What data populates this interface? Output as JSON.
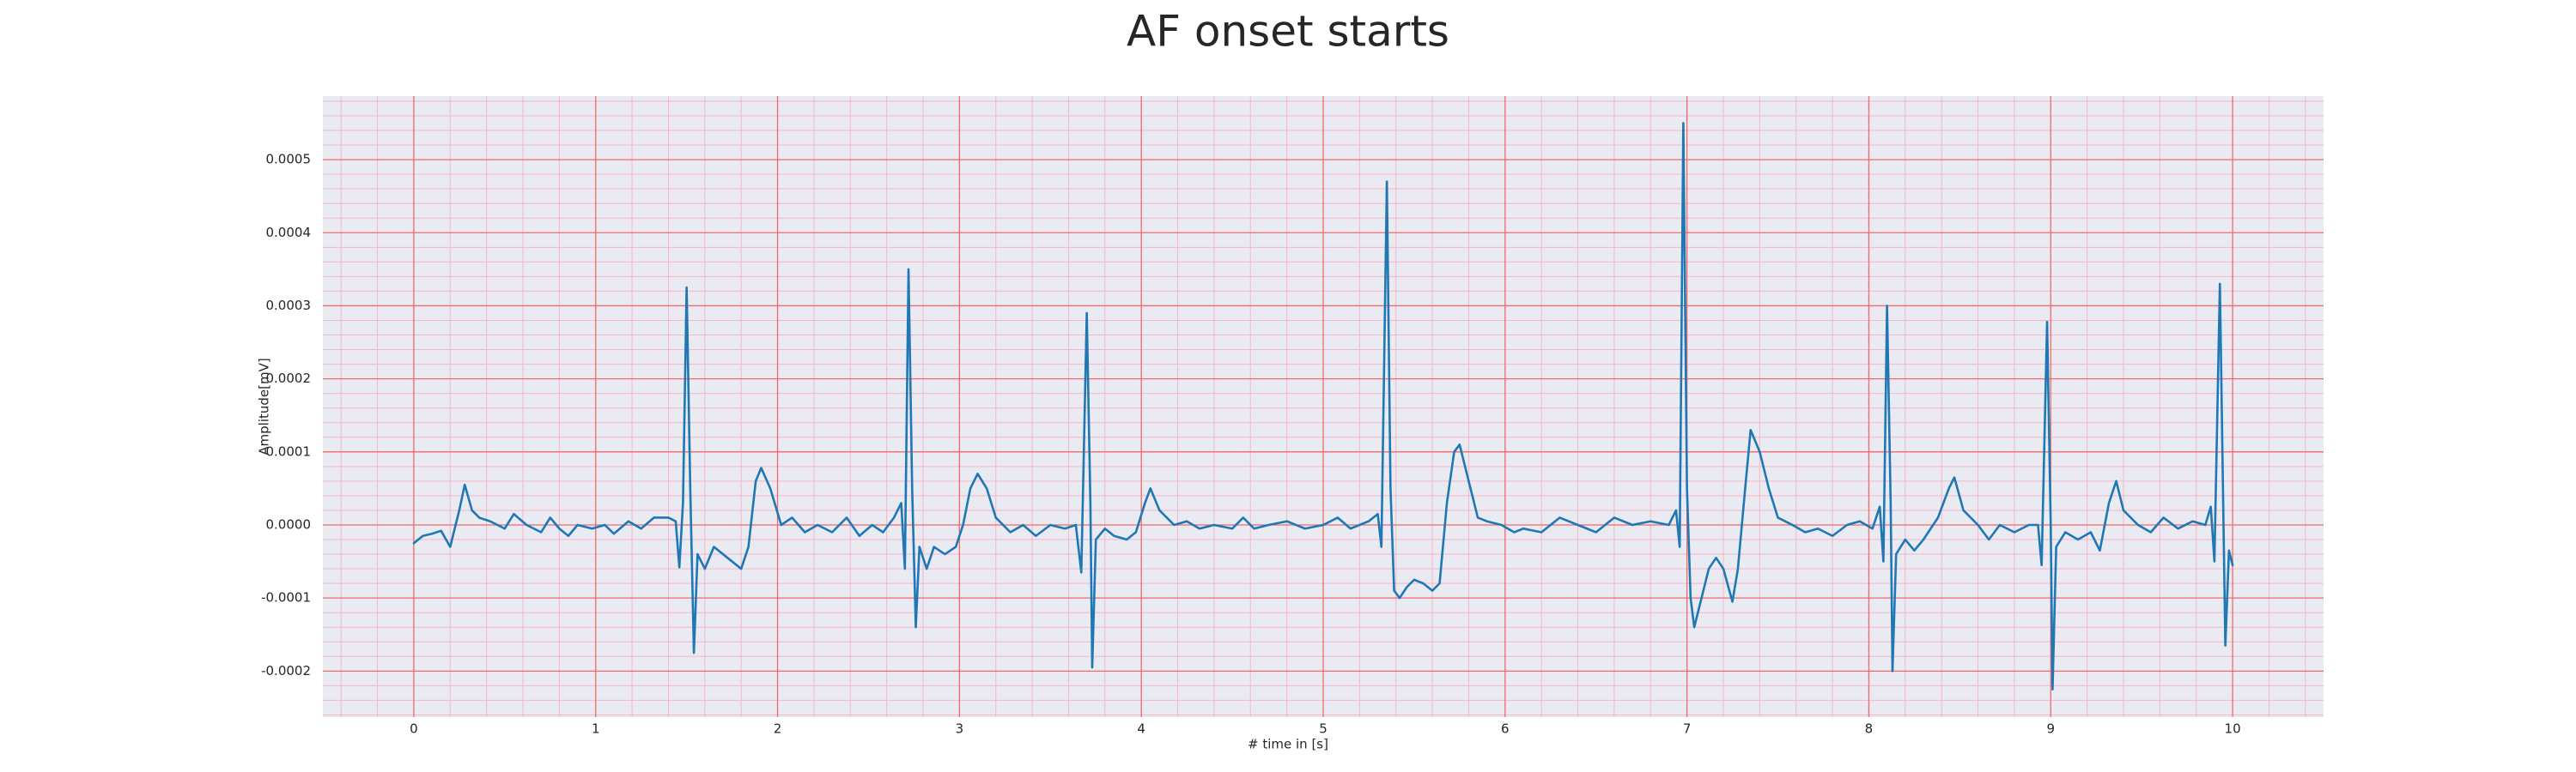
{
  "chart_data": {
    "type": "line",
    "title": "AF onset starts",
    "x_label": "# time in [s]",
    "y_label": "Amplitude[mV]",
    "xlim": [
      -0.5,
      10.5
    ],
    "ylim": [
      -0.000263,
      0.000587
    ],
    "xticks": [
      0,
      1,
      2,
      3,
      4,
      5,
      6,
      7,
      8,
      9,
      10
    ],
    "yticks": [
      {
        "value": -0.0002,
        "label": "-0.0002"
      },
      {
        "value": -0.0001,
        "label": "-0.0001"
      },
      {
        "value": 0,
        "label": "0.0000"
      },
      {
        "value": 0.0001,
        "label": "0.0001"
      },
      {
        "value": 0.0002,
        "label": "0.0002"
      },
      {
        "value": 0.0003,
        "label": "0.0003"
      },
      {
        "value": 0.0004,
        "label": "0.0004"
      },
      {
        "value": 0.0005,
        "label": "0.0005"
      }
    ],
    "grid": true,
    "minor_grid": true,
    "color": "#1f77b4",
    "x": [
      0,
      0.05,
      0.1,
      0.15,
      0.2,
      0.25,
      0.28,
      0.32,
      0.36,
      0.42,
      0.5,
      0.55,
      0.62,
      0.7,
      0.75,
      0.8,
      0.85,
      0.9,
      0.98,
      1.05,
      1.1,
      1.18,
      1.25,
      1.32,
      1.4,
      1.44,
      1.46,
      1.48,
      1.5,
      1.52,
      1.54,
      1.56,
      1.6,
      1.65,
      1.7,
      1.75,
      1.8,
      1.84,
      1.88,
      1.91,
      1.96,
      2.02,
      2.08,
      2.15,
      2.22,
      2.3,
      2.38,
      2.45,
      2.52,
      2.58,
      2.64,
      2.68,
      2.7,
      2.72,
      2.74,
      2.76,
      2.78,
      2.82,
      2.86,
      2.92,
      2.98,
      3.02,
      3.06,
      3.1,
      3.15,
      3.2,
      3.28,
      3.35,
      3.42,
      3.5,
      3.58,
      3.64,
      3.67,
      3.7,
      3.72,
      3.73,
      3.75,
      3.8,
      3.85,
      3.92,
      3.97,
      4.02,
      4.05,
      4.1,
      4.18,
      4.25,
      4.32,
      4.4,
      4.5,
      4.56,
      4.62,
      4.7,
      4.8,
      4.9,
      5,
      5.08,
      5.15,
      5.25,
      5.3,
      5.32,
      5.35,
      5.37,
      5.39,
      5.42,
      5.46,
      5.5,
      5.55,
      5.6,
      5.64,
      5.68,
      5.72,
      5.75,
      5.8,
      5.85,
      5.9,
      5.98,
      6.05,
      6.1,
      6.2,
      6.3,
      6.4,
      6.5,
      6.6,
      6.7,
      6.8,
      6.9,
      6.94,
      6.96,
      6.98,
      7,
      7.02,
      7.04,
      7.08,
      7.12,
      7.16,
      7.2,
      7.25,
      7.28,
      7.32,
      7.35,
      7.4,
      7.45,
      7.5,
      7.58,
      7.65,
      7.72,
      7.8,
      7.88,
      7.95,
      8.02,
      8.06,
      8.08,
      8.1,
      8.12,
      8.13,
      8.15,
      8.2,
      8.25,
      8.3,
      8.38,
      8.44,
      8.47,
      8.52,
      8.6,
      8.66,
      8.72,
      8.8,
      8.88,
      8.93,
      8.95,
      8.98,
      9,
      9.01,
      9.03,
      9.08,
      9.15,
      9.22,
      9.27,
      9.32,
      9.36,
      9.4,
      9.48,
      9.55,
      9.62,
      9.7,
      9.78,
      9.85,
      9.88,
      9.9,
      9.93,
      9.95,
      9.96,
      9.98,
      10
    ],
    "values": [
      -2.5e-05,
      -1.5e-05,
      -1.2e-05,
      -8e-06,
      -3e-05,
      2e-05,
      5.5e-05,
      2e-05,
      1e-05,
      5e-06,
      -5e-06,
      1.5e-05,
      0,
      -1e-05,
      1e-05,
      -5e-06,
      -1.5e-05,
      0,
      -5e-06,
      0,
      -1.2e-05,
      5e-06,
      -5e-06,
      1e-05,
      1e-05,
      5e-06,
      -5.8e-05,
      3e-05,
      0.000325,
      5e-05,
      -0.000175,
      -4e-05,
      -6e-05,
      -3e-05,
      -4e-05,
      -5e-05,
      -6e-05,
      -3e-05,
      6e-05,
      7.8e-05,
      5e-05,
      0,
      1e-05,
      -1e-05,
      0,
      -1e-05,
      1e-05,
      -1.5e-05,
      0,
      -1e-05,
      1e-05,
      3e-05,
      -6e-05,
      0.00035,
      5e-05,
      -0.00014,
      -3e-05,
      -6e-05,
      -3e-05,
      -4e-05,
      -3e-05,
      0,
      5e-05,
      7e-05,
      5e-05,
      1e-05,
      -1e-05,
      0,
      -1.5e-05,
      0,
      -5e-06,
      0,
      -6.5e-05,
      0.00029,
      3e-05,
      -0.000195,
      -2e-05,
      -5e-06,
      -1.5e-05,
      -2e-05,
      -1e-05,
      3e-05,
      5e-05,
      2e-05,
      0,
      5e-06,
      -5e-06,
      0,
      -5e-06,
      1e-05,
      -5e-06,
      0,
      5e-06,
      -5e-06,
      0,
      1e-05,
      -5e-06,
      5e-06,
      1.5e-05,
      -3e-05,
      0.00047,
      5e-05,
      -9e-05,
      -0.0001,
      -8.5e-05,
      -7.5e-05,
      -8e-05,
      -9e-05,
      -8e-05,
      3e-05,
      0.0001,
      0.00011,
      6e-05,
      1e-05,
      5e-06,
      0,
      -1e-05,
      -5e-06,
      -1e-05,
      1e-05,
      0,
      -1e-05,
      1e-05,
      0,
      5e-06,
      0,
      2e-05,
      -3e-05,
      0.00055,
      5e-05,
      -0.0001,
      -0.00014,
      -0.0001,
      -6e-05,
      -4.5e-05,
      -6e-05,
      -0.000105,
      -6e-05,
      5e-05,
      0.00013,
      0.0001,
      5e-05,
      1e-05,
      0,
      -1e-05,
      -5e-06,
      -1.5e-05,
      0,
      5e-06,
      -5e-06,
      2.5e-05,
      -5e-05,
      0.0003,
      3e-05,
      -0.0002,
      -4e-05,
      -2e-05,
      -3.5e-05,
      -2e-05,
      1e-05,
      5e-05,
      6.5e-05,
      2e-05,
      0,
      -2e-05,
      0,
      -1e-05,
      0,
      0,
      -5.5e-05,
      0.000278,
      0,
      -0.000225,
      -3e-05,
      -1e-05,
      -2e-05,
      -1e-05,
      -3.5e-05,
      3e-05,
      6e-05,
      2e-05,
      0,
      -1e-05,
      1e-05,
      -5e-06,
      5e-06,
      0,
      2.5e-05,
      -5e-05,
      0.00033,
      0,
      -0.000165,
      -3.5e-05,
      -5.5e-05
    ]
  }
}
